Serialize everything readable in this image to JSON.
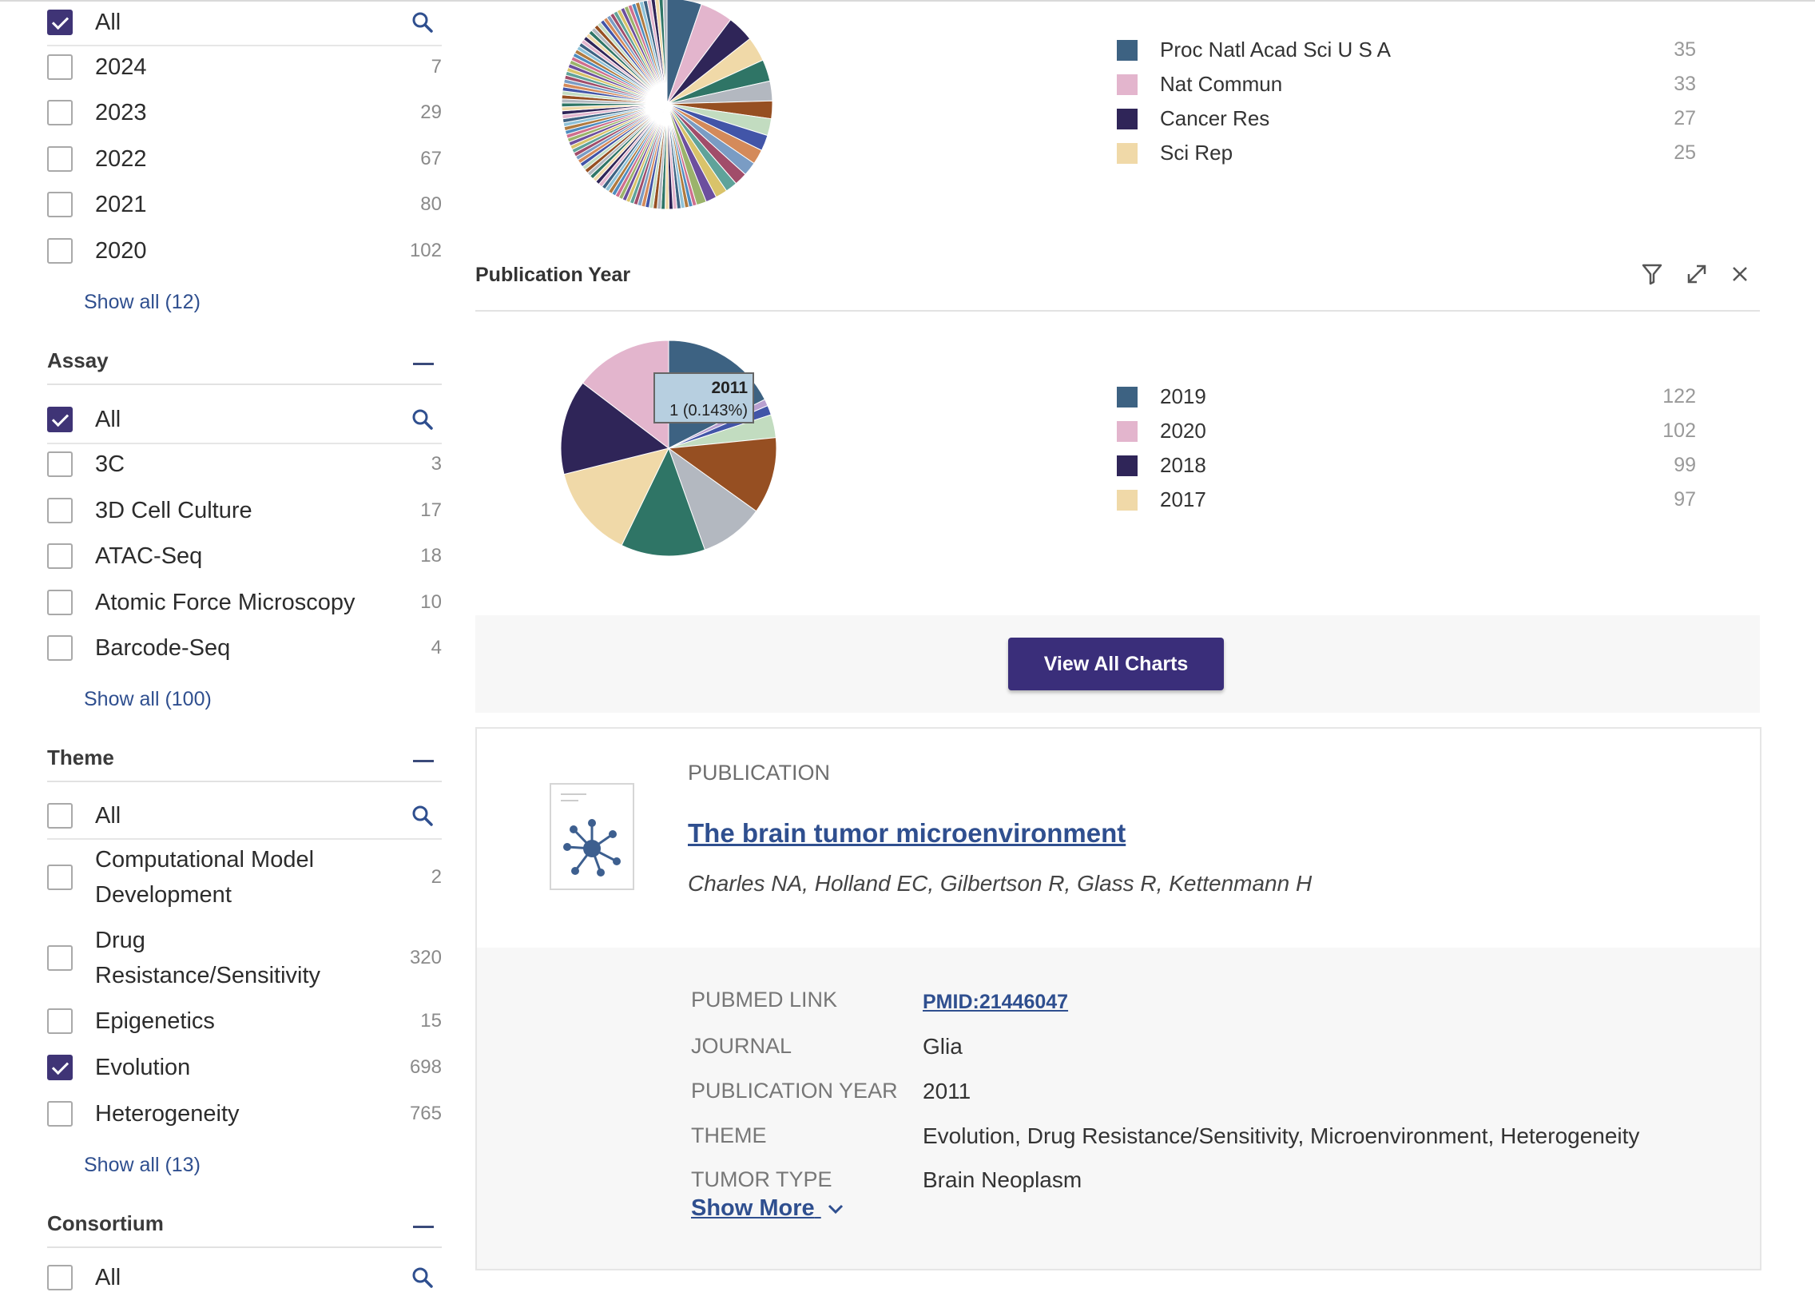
{
  "year_facet": {
    "all_label": "All",
    "items": [
      {
        "label": "2024",
        "count": "7"
      },
      {
        "label": "2023",
        "count": "29"
      },
      {
        "label": "2022",
        "count": "67"
      },
      {
        "label": "2021",
        "count": "80"
      },
      {
        "label": "2020",
        "count": "102"
      }
    ],
    "show_all": "Show all (12)"
  },
  "assay_facet": {
    "title": "Assay",
    "all_label": "All",
    "items": [
      {
        "label": "3C",
        "count": "3"
      },
      {
        "label": "3D Cell Culture",
        "count": "17"
      },
      {
        "label": "ATAC-Seq",
        "count": "18"
      },
      {
        "label": "Atomic Force Microscopy",
        "count": "10"
      },
      {
        "label": "Barcode-Seq",
        "count": "4"
      }
    ],
    "show_all": "Show all (100)"
  },
  "theme_facet": {
    "title": "Theme",
    "all_label": "All",
    "items": [
      {
        "label": "Computational Model Development",
        "count": "2",
        "checked": false
      },
      {
        "label": "Drug Resistance/Sensitivity",
        "count": "320",
        "checked": false
      },
      {
        "label": "Epigenetics",
        "count": "15",
        "checked": false
      },
      {
        "label": "Evolution",
        "count": "698",
        "checked": true
      },
      {
        "label": "Heterogeneity",
        "count": "765",
        "checked": false
      }
    ],
    "show_all": "Show all (13)"
  },
  "consortium_facet": {
    "title": "Consortium",
    "all_label": "All"
  },
  "journal_chart": {
    "legend": [
      {
        "label": "Proc Natl Acad Sci U S A",
        "count": "35",
        "color": "#3d6282"
      },
      {
        "label": "Nat Commun",
        "count": "33",
        "color": "#e3b5cd"
      },
      {
        "label": "Cancer Res",
        "count": "27",
        "color": "#2f2558"
      },
      {
        "label": "Sci Rep",
        "count": "25",
        "color": "#f0d9a8"
      }
    ]
  },
  "year_chart": {
    "title": "Publication Year",
    "icons": [
      "filter-icon",
      "expand-icon",
      "close-icon"
    ],
    "legend": [
      {
        "label": "2019",
        "count": "122",
        "color": "#3d6282"
      },
      {
        "label": "2020",
        "count": "102",
        "color": "#e3b5cd"
      },
      {
        "label": "2018",
        "count": "99",
        "color": "#2f2558"
      },
      {
        "label": "2017",
        "count": "97",
        "color": "#f0d9a8"
      }
    ],
    "tooltip": {
      "title": "2011",
      "value": "1 (0.143%)"
    }
  },
  "view_all_charts": "View All Charts",
  "publication": {
    "type": "PUBLICATION",
    "title": "The brain tumor microenvironment",
    "authors": "Charles NA, Holland EC, Gilbertson R, Glass R, Kettenmann H",
    "details": [
      {
        "label": "PUBMED LINK",
        "value": "PMID:21446047"
      },
      {
        "label": "JOURNAL",
        "value": "Glia"
      },
      {
        "label": "PUBLICATION YEAR",
        "value": "2011"
      },
      {
        "label": "THEME",
        "value": "Evolution, Drug Resistance/Sensitivity, Microenvironment, Heterogeneity"
      },
      {
        "label": "TUMOR TYPE",
        "value": "Brain Neoplasm"
      }
    ],
    "show_more": "Show More"
  },
  "colors": {
    "accent": "#3a2e7a",
    "link": "#2f4f8f"
  }
}
